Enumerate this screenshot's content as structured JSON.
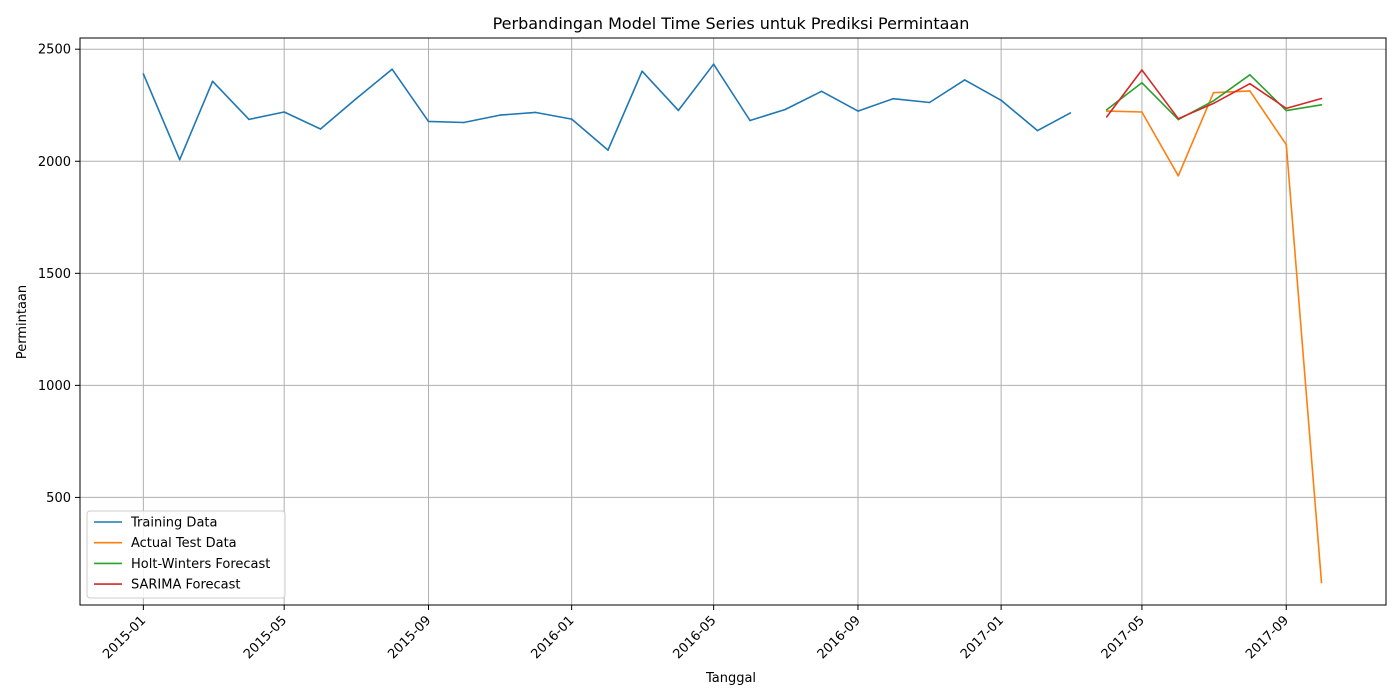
{
  "chart_data": {
    "type": "line",
    "title": "Perbandingan Model Time Series untuk Prediksi Permintaan",
    "xlabel": "Tanggal",
    "ylabel": "Permintaan",
    "x_ticks": [
      "2015-01",
      "2015-05",
      "2015-09",
      "2016-01",
      "2016-05",
      "2016-09",
      "2017-01",
      "2017-05",
      "2017-09"
    ],
    "y_ticks": [
      500,
      1000,
      1500,
      2000,
      2500
    ],
    "xlim": [
      "2014-11-08",
      "2017-11-25"
    ],
    "ylim": [
      20,
      2550
    ],
    "grid": true,
    "legend_position": "lower-left",
    "series": [
      {
        "name": "Training Data",
        "color": "#1f77b4",
        "x": [
          "2015-01-01",
          "2015-02-01",
          "2015-03-01",
          "2015-04-01",
          "2015-05-01",
          "2015-06-01",
          "2015-07-01",
          "2015-08-01",
          "2015-09-01",
          "2015-10-01",
          "2015-11-01",
          "2015-12-01",
          "2016-01-01",
          "2016-02-01",
          "2016-03-01",
          "2016-04-01",
          "2016-05-01",
          "2016-06-01",
          "2016-07-01",
          "2016-08-01",
          "2016-09-01",
          "2016-10-01",
          "2016-11-01",
          "2016-12-01",
          "2017-01-01",
          "2017-02-01",
          "2017-03-01"
        ],
        "values": [
          2390,
          2007,
          2357,
          2187,
          2220,
          2144,
          2278,
          2411,
          2178,
          2173,
          2206,
          2218,
          2188,
          2050,
          2402,
          2227,
          2433,
          2182,
          2231,
          2312,
          2224,
          2279,
          2262,
          2363,
          2272,
          2137,
          2216
        ]
      },
      {
        "name": "Actual Test Data",
        "color": "#ff7f0e",
        "x": [
          "2017-04-01",
          "2017-05-01",
          "2017-06-01",
          "2017-07-01",
          "2017-08-01",
          "2017-09-01",
          "2017-10-01"
        ],
        "values": [
          2224,
          2220,
          1935,
          2306,
          2314,
          2074,
          120
        ]
      },
      {
        "name": "Holt-Winters Forecast",
        "color": "#2ca02c",
        "x": [
          "2017-04-01",
          "2017-05-01",
          "2017-06-01",
          "2017-07-01",
          "2017-08-01",
          "2017-09-01",
          "2017-10-01"
        ],
        "values": [
          2230,
          2350,
          2186,
          2270,
          2386,
          2226,
          2252
        ]
      },
      {
        "name": "SARIMA Forecast",
        "color": "#d62728",
        "x": [
          "2017-04-01",
          "2017-05-01",
          "2017-06-01",
          "2017-07-01",
          "2017-08-01",
          "2017-09-01",
          "2017-10-01"
        ],
        "values": [
          2198,
          2407,
          2190,
          2258,
          2346,
          2236,
          2280
        ]
      }
    ]
  }
}
